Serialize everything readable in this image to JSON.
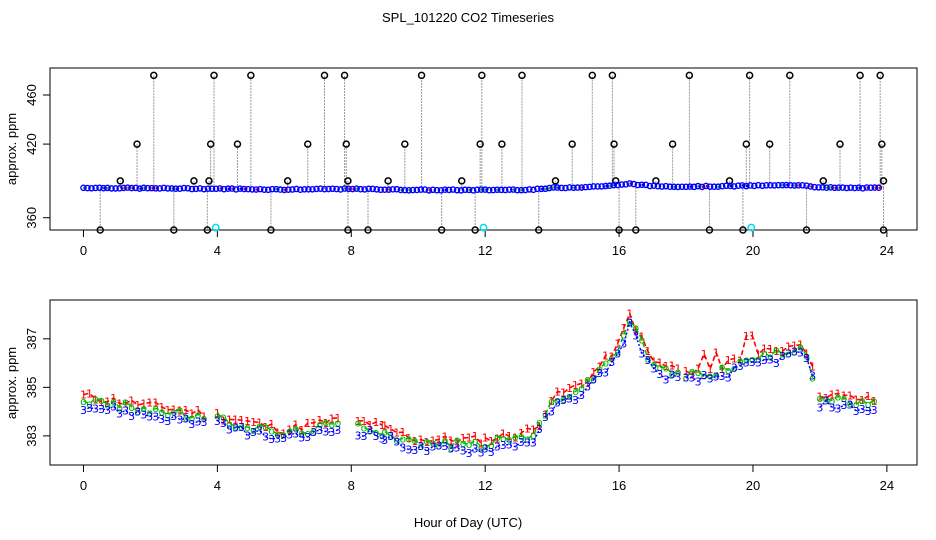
{
  "title": "SPL_101220  CO2 Timeseries",
  "xlabel": "Hour of Day (UTC)",
  "chart_data": [
    {
      "type": "scatter",
      "title": "SPL_101220  CO2 Timeseries",
      "ylabel": "approx. ppm",
      "xlim": [
        -1,
        24.9
      ],
      "ylim": [
        350,
        482
      ],
      "xticks": [
        0,
        4,
        8,
        12,
        16,
        20,
        24
      ],
      "yticks": [
        360,
        420,
        460
      ],
      "base": [
        [
          0,
          384.4
        ],
        [
          2,
          384.0
        ],
        [
          3,
          383.8
        ],
        [
          4,
          383.6
        ],
        [
          6,
          383.0
        ],
        [
          7.5,
          383.4
        ],
        [
          8.5,
          383.3
        ],
        [
          10,
          382.6
        ],
        [
          12,
          382.6
        ],
        [
          13.5,
          383.0
        ],
        [
          14,
          384.3
        ],
        [
          15,
          385.0
        ],
        [
          16,
          386.5
        ],
        [
          16.3,
          387.8
        ],
        [
          17,
          385.8
        ],
        [
          18,
          385.4
        ],
        [
          19,
          385.6
        ],
        [
          20,
          386.1
        ],
        [
          21,
          386.4
        ],
        [
          21.5,
          386.7
        ],
        [
          22,
          384.5
        ],
        [
          23,
          384.3
        ],
        [
          23.8,
          384.2
        ]
      ],
      "spikes_high": [
        2.1,
        3.9,
        5.0,
        7.2,
        7.8,
        10.1,
        11.9,
        13.1,
        15.2,
        15.8,
        18.1,
        19.9,
        21.1,
        23.2,
        23.8
      ],
      "spikes_mid": [
        1.6,
        3.8,
        4.6,
        6.7,
        7.85,
        9.6,
        11.85,
        12.5,
        14.6,
        15.85,
        17.6,
        19.8,
        20.5,
        22.6,
        23.85
      ],
      "spikes_low": [
        1.1,
        3.3,
        3.75,
        6.1,
        7.9,
        9.1,
        11.3,
        14.1,
        15.9,
        17.1,
        19.3,
        22.1,
        23.9
      ],
      "drops": [
        0.5,
        2.7,
        3.7,
        5.6,
        7.9,
        8.5,
        10.7,
        11.7,
        13.6,
        16.0,
        16.5,
        18.7,
        19.7,
        21.6,
        23.9
      ],
      "calibration_markers": [
        3.95,
        11.95,
        19.95
      ],
      "calibration_value": 352
    },
    {
      "type": "line",
      "ylabel": "approx. ppm",
      "xlim": [
        -1,
        24.9
      ],
      "ylim": [
        381.8,
        388.6
      ],
      "xticks": [
        0,
        4,
        8,
        12,
        16,
        20,
        24
      ],
      "yticks": [
        383,
        385,
        387
      ],
      "series": [
        {
          "name": "1",
          "color": "#ff0000",
          "offset": 0.25
        },
        {
          "name": "2",
          "color": "#00bb00",
          "offset": 0.1
        },
        {
          "name": "3",
          "color": "#0000ff",
          "offset": -0.15
        }
      ]
    }
  ]
}
